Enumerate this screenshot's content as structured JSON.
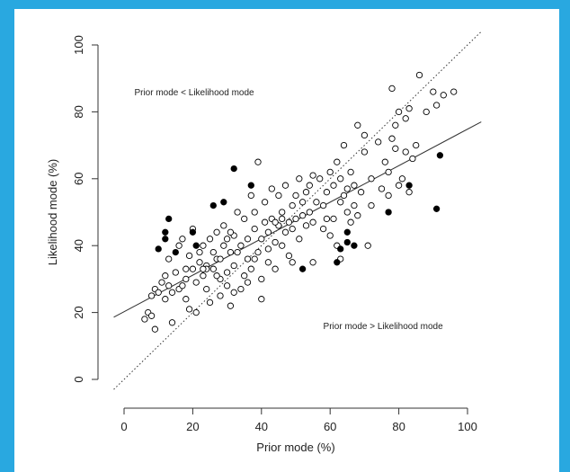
{
  "chart_data": {
    "type": "scatter",
    "title": "",
    "xlabel": "Prior mode (%)",
    "ylabel": "Likelihood mode (%)",
    "xlim": [
      0,
      100
    ],
    "ylim": [
      0,
      100
    ],
    "x_ticks": [
      "0",
      "20",
      "40",
      "60",
      "80",
      "100"
    ],
    "y_ticks": [
      "0",
      "20",
      "40",
      "60",
      "80",
      "100"
    ],
    "grid": false,
    "annotations": [
      {
        "text": "Prior mode < Likelihood mode",
        "at": [
          3,
          85
        ]
      },
      {
        "text": "Prior mode > Likelihood mode",
        "at": [
          58,
          15
        ]
      }
    ],
    "identity_line": {
      "x": [
        -3,
        104
      ],
      "y": [
        -3,
        104
      ],
      "style": "dotted"
    },
    "regression_line": {
      "x": [
        -3,
        104
      ],
      "y": [
        18.6,
        77
      ],
      "style": "solid"
    },
    "series": [
      {
        "marker": "open-circle",
        "points": [
          [
            6,
            18
          ],
          [
            7,
            20
          ],
          [
            8,
            19
          ],
          [
            8,
            25
          ],
          [
            9,
            27
          ],
          [
            9,
            15
          ],
          [
            10,
            26
          ],
          [
            11,
            29
          ],
          [
            12,
            31
          ],
          [
            12,
            24
          ],
          [
            13,
            28
          ],
          [
            13,
            36
          ],
          [
            14,
            17
          ],
          [
            14,
            26
          ],
          [
            15,
            32
          ],
          [
            16,
            27
          ],
          [
            16,
            40
          ],
          [
            17,
            28
          ],
          [
            17,
            42
          ],
          [
            18,
            30
          ],
          [
            18,
            24
          ],
          [
            19,
            37
          ],
          [
            19,
            21
          ],
          [
            20,
            33
          ],
          [
            20,
            45
          ],
          [
            21,
            29
          ],
          [
            21,
            20
          ],
          [
            22,
            35
          ],
          [
            22,
            38
          ],
          [
            23,
            31
          ],
          [
            23,
            40
          ],
          [
            24,
            34
          ],
          [
            24,
            27
          ],
          [
            25,
            42
          ],
          [
            25,
            23
          ],
          [
            26,
            38
          ],
          [
            26,
            33
          ],
          [
            27,
            36
          ],
          [
            27,
            44
          ],
          [
            28,
            30
          ],
          [
            28,
            25
          ],
          [
            29,
            40
          ],
          [
            29,
            46
          ],
          [
            30,
            32
          ],
          [
            30,
            28
          ],
          [
            31,
            38
          ],
          [
            31,
            22
          ],
          [
            32,
            34
          ],
          [
            32,
            43
          ],
          [
            33,
            50
          ],
          [
            33,
            38
          ],
          [
            34,
            27
          ],
          [
            34,
            40
          ],
          [
            35,
            48
          ],
          [
            35,
            31
          ],
          [
            36,
            36
          ],
          [
            36,
            42
          ],
          [
            37,
            55
          ],
          [
            37,
            33
          ],
          [
            38,
            45
          ],
          [
            38,
            50
          ],
          [
            39,
            38
          ],
          [
            39,
            65
          ],
          [
            40,
            42
          ],
          [
            40,
            30
          ],
          [
            41,
            47
          ],
          [
            41,
            53
          ],
          [
            42,
            44
          ],
          [
            42,
            35
          ],
          [
            43,
            48
          ],
          [
            43,
            57
          ],
          [
            44,
            41
          ],
          [
            44,
            33
          ],
          [
            45,
            46
          ],
          [
            45,
            55
          ],
          [
            46,
            40
          ],
          [
            46,
            50
          ],
          [
            47,
            44
          ],
          [
            47,
            58
          ],
          [
            48,
            47
          ],
          [
            48,
            37
          ],
          [
            49,
            52
          ],
          [
            49,
            45
          ],
          [
            50,
            48
          ],
          [
            50,
            55
          ],
          [
            51,
            42
          ],
          [
            51,
            60
          ],
          [
            52,
            49
          ],
          [
            52,
            53
          ],
          [
            53,
            46
          ],
          [
            53,
            56
          ],
          [
            54,
            58
          ],
          [
            54,
            50
          ],
          [
            55,
            35
          ],
          [
            55,
            47
          ],
          [
            56,
            53
          ],
          [
            57,
            60
          ],
          [
            58,
            45
          ],
          [
            58,
            52
          ],
          [
            59,
            56
          ],
          [
            60,
            43
          ],
          [
            60,
            62
          ],
          [
            61,
            48
          ],
          [
            61,
            58
          ],
          [
            62,
            40
          ],
          [
            62,
            65
          ],
          [
            63,
            53
          ],
          [
            63,
            60
          ],
          [
            64,
            70
          ],
          [
            64,
            55
          ],
          [
            65,
            50
          ],
          [
            65,
            57
          ],
          [
            66,
            47
          ],
          [
            66,
            62
          ],
          [
            67,
            52
          ],
          [
            67,
            58
          ],
          [
            68,
            76
          ],
          [
            68,
            49
          ],
          [
            69,
            56
          ],
          [
            70,
            73
          ],
          [
            70,
            68
          ],
          [
            72,
            60
          ],
          [
            72,
            52
          ],
          [
            74,
            71
          ],
          [
            75,
            57
          ],
          [
            76,
            65
          ],
          [
            77,
            62
          ],
          [
            77,
            55
          ],
          [
            78,
            72
          ],
          [
            79,
            76
          ],
          [
            79,
            69
          ],
          [
            80,
            80
          ],
          [
            80,
            58
          ],
          [
            81,
            60
          ],
          [
            82,
            78
          ],
          [
            82,
            68
          ],
          [
            83,
            81
          ],
          [
            83,
            56
          ],
          [
            84,
            66
          ],
          [
            85,
            70
          ],
          [
            86,
            91
          ],
          [
            88,
            80
          ],
          [
            90,
            86
          ],
          [
            91,
            82
          ],
          [
            93,
            85
          ],
          [
            96,
            86
          ],
          [
            78,
            87
          ],
          [
            24,
            33
          ],
          [
            27,
            31
          ],
          [
            46,
            48
          ],
          [
            49,
            35
          ],
          [
            44,
            47
          ],
          [
            38,
            36
          ],
          [
            42,
            39
          ],
          [
            36,
            29
          ],
          [
            30,
            42
          ],
          [
            55,
            61
          ],
          [
            59,
            48
          ],
          [
            63,
            36
          ],
          [
            40,
            24
          ],
          [
            23,
            33
          ],
          [
            31,
            44
          ],
          [
            18,
            33
          ],
          [
            71,
            40
          ],
          [
            28,
            36
          ],
          [
            32,
            26
          ]
        ]
      },
      {
        "marker": "filled-circle",
        "points": [
          [
            10,
            39
          ],
          [
            12,
            42
          ],
          [
            12,
            44
          ],
          [
            13,
            48
          ],
          [
            15,
            38
          ],
          [
            20,
            44
          ],
          [
            21,
            40
          ],
          [
            26,
            52
          ],
          [
            29,
            53
          ],
          [
            32,
            63
          ],
          [
            37,
            58
          ],
          [
            52,
            33
          ],
          [
            62,
            35
          ],
          [
            63,
            39
          ],
          [
            65,
            41
          ],
          [
            65,
            44
          ],
          [
            67,
            40
          ],
          [
            77,
            50
          ],
          [
            83,
            58
          ],
          [
            91,
            51
          ],
          [
            92,
            67
          ]
        ]
      }
    ]
  }
}
